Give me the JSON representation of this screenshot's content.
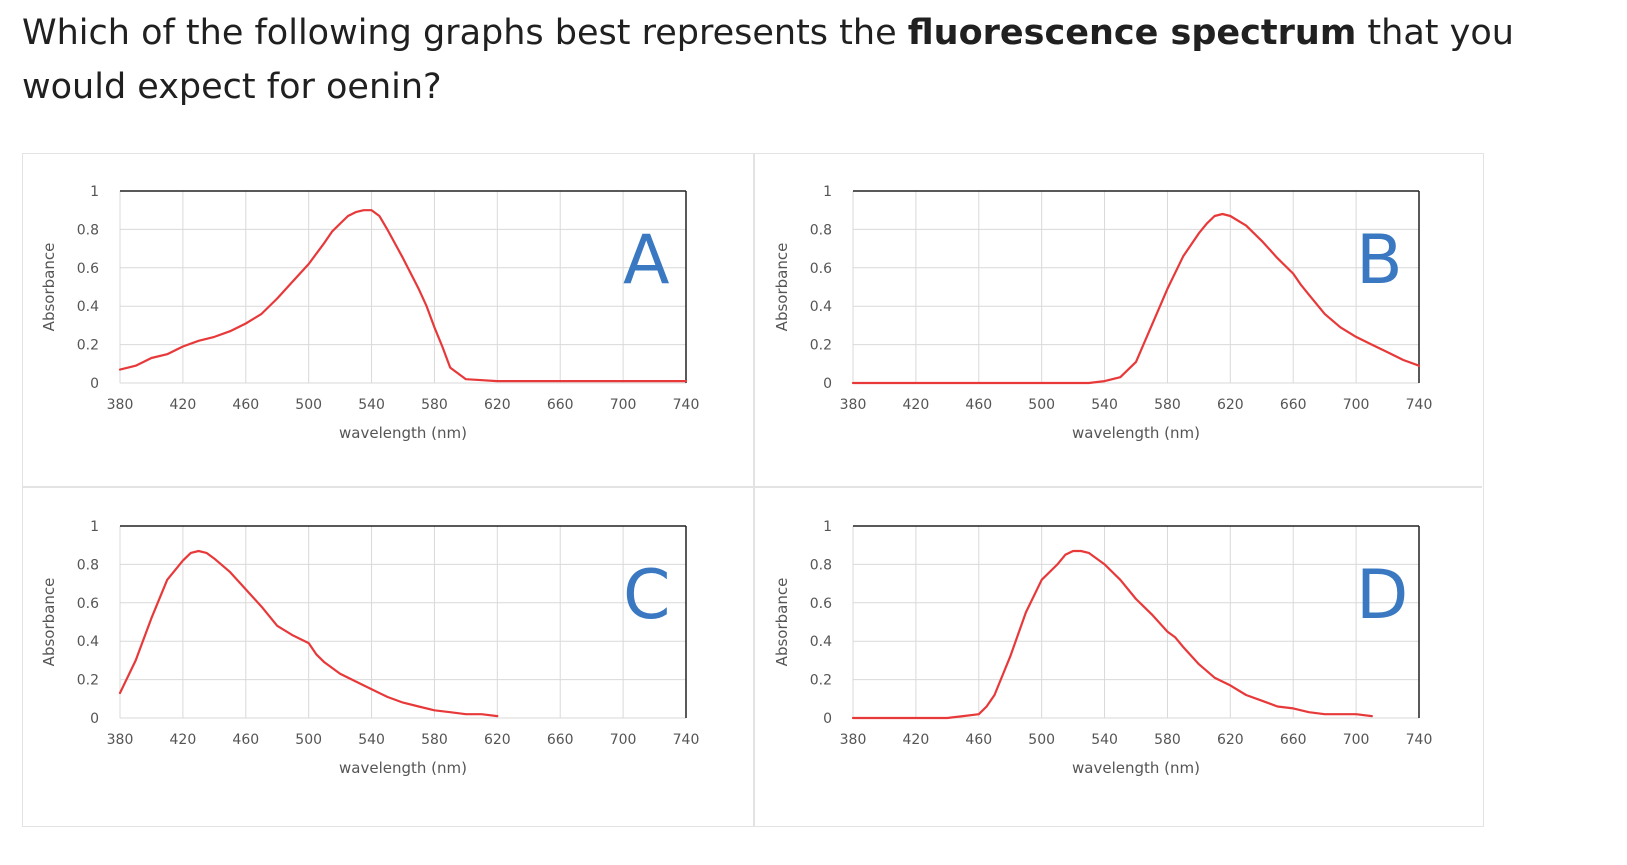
{
  "question": {
    "pre": "Which of the following graphs best represents the ",
    "bold": "fluorescence spectrum",
    "post": " that you would expect for oenin?"
  },
  "colors": {
    "curve": "#e8393a",
    "letter": "#3a78c2",
    "grid": "#d9d9d9",
    "frame": "#222222"
  },
  "chart_data": [
    {
      "type": "line",
      "letter": "A",
      "xlabel": "wavelength (nm)",
      "ylabel": "Absorbance",
      "xlim": [
        380,
        740
      ],
      "ylim": [
        0,
        1
      ],
      "xticks": [
        "380",
        "420",
        "460",
        "500",
        "540",
        "580",
        "620",
        "660",
        "700",
        "740"
      ],
      "yticks": [
        "0",
        "0.2",
        "0.4",
        "0.6",
        "0.8",
        "1"
      ],
      "grid": true,
      "x": [
        380,
        390,
        395,
        400,
        410,
        420,
        430,
        440,
        450,
        460,
        470,
        480,
        490,
        500,
        510,
        515,
        520,
        525,
        530,
        535,
        540,
        545,
        550,
        560,
        570,
        575,
        580,
        585,
        590,
        600,
        620,
        660,
        700,
        740
      ],
      "y": [
        0.07,
        0.09,
        0.11,
        0.13,
        0.15,
        0.19,
        0.22,
        0.24,
        0.27,
        0.31,
        0.36,
        0.44,
        0.53,
        0.62,
        0.73,
        0.79,
        0.83,
        0.87,
        0.89,
        0.9,
        0.9,
        0.87,
        0.8,
        0.65,
        0.49,
        0.4,
        0.29,
        0.19,
        0.08,
        0.02,
        0.01,
        0.01,
        0.01,
        0.01
      ]
    },
    {
      "type": "line",
      "letter": "B",
      "xlabel": "wavelength (nm)",
      "ylabel": "Absorbance",
      "xlim": [
        380,
        740
      ],
      "ylim": [
        0,
        1
      ],
      "xticks": [
        "380",
        "420",
        "460",
        "500",
        "540",
        "580",
        "620",
        "660",
        "700",
        "740"
      ],
      "yticks": [
        "0",
        "0.2",
        "0.4",
        "0.6",
        "0.8",
        "1"
      ],
      "grid": true,
      "x": [
        380,
        420,
        460,
        500,
        530,
        540,
        550,
        560,
        570,
        580,
        590,
        600,
        605,
        610,
        615,
        620,
        630,
        640,
        650,
        660,
        665,
        670,
        680,
        690,
        700,
        710,
        720,
        730,
        740
      ],
      "y": [
        0,
        0,
        0,
        0,
        0,
        0.01,
        0.03,
        0.11,
        0.3,
        0.49,
        0.66,
        0.78,
        0.83,
        0.87,
        0.88,
        0.87,
        0.82,
        0.74,
        0.65,
        0.57,
        0.51,
        0.46,
        0.36,
        0.29,
        0.24,
        0.2,
        0.16,
        0.12,
        0.09
      ]
    },
    {
      "type": "line",
      "letter": "C",
      "xlabel": "wavelength (nm)",
      "ylabel": "Absorbance",
      "xlim": [
        380,
        740
      ],
      "ylim": [
        0,
        1
      ],
      "xticks": [
        "380",
        "420",
        "460",
        "500",
        "540",
        "580",
        "620",
        "660",
        "700",
        "740"
      ],
      "yticks": [
        "0",
        "0.2",
        "0.4",
        "0.6",
        "0.8",
        "1"
      ],
      "grid": true,
      "x": [
        380,
        390,
        400,
        410,
        420,
        425,
        430,
        435,
        440,
        450,
        460,
        470,
        480,
        490,
        500,
        505,
        510,
        520,
        530,
        540,
        550,
        560,
        570,
        580,
        590,
        600,
        610,
        620
      ],
      "y": [
        0.13,
        0.3,
        0.52,
        0.72,
        0.82,
        0.86,
        0.87,
        0.86,
        0.83,
        0.76,
        0.67,
        0.58,
        0.48,
        0.43,
        0.39,
        0.33,
        0.29,
        0.23,
        0.19,
        0.15,
        0.11,
        0.08,
        0.06,
        0.04,
        0.03,
        0.02,
        0.02,
        0.01
      ]
    },
    {
      "type": "line",
      "letter": "D",
      "xlabel": "wavelength (nm)",
      "ylabel": "Absorbance",
      "xlim": [
        380,
        740
      ],
      "ylim": [
        0,
        1
      ],
      "xticks": [
        "380",
        "420",
        "460",
        "500",
        "540",
        "580",
        "620",
        "660",
        "700",
        "740"
      ],
      "yticks": [
        "0",
        "0.2",
        "0.4",
        "0.6",
        "0.8",
        "1"
      ],
      "grid": true,
      "x": [
        380,
        400,
        440,
        450,
        460,
        465,
        470,
        480,
        490,
        500,
        510,
        515,
        520,
        525,
        530,
        540,
        550,
        560,
        570,
        580,
        585,
        590,
        600,
        610,
        620,
        630,
        640,
        650,
        660,
        670,
        680,
        690,
        700,
        710
      ],
      "y": [
        0,
        0,
        0,
        0.01,
        0.02,
        0.06,
        0.12,
        0.32,
        0.55,
        0.72,
        0.8,
        0.85,
        0.87,
        0.87,
        0.86,
        0.8,
        0.72,
        0.62,
        0.54,
        0.45,
        0.42,
        0.37,
        0.28,
        0.21,
        0.17,
        0.12,
        0.09,
        0.06,
        0.05,
        0.03,
        0.02,
        0.02,
        0.02,
        0.01
      ]
    }
  ]
}
